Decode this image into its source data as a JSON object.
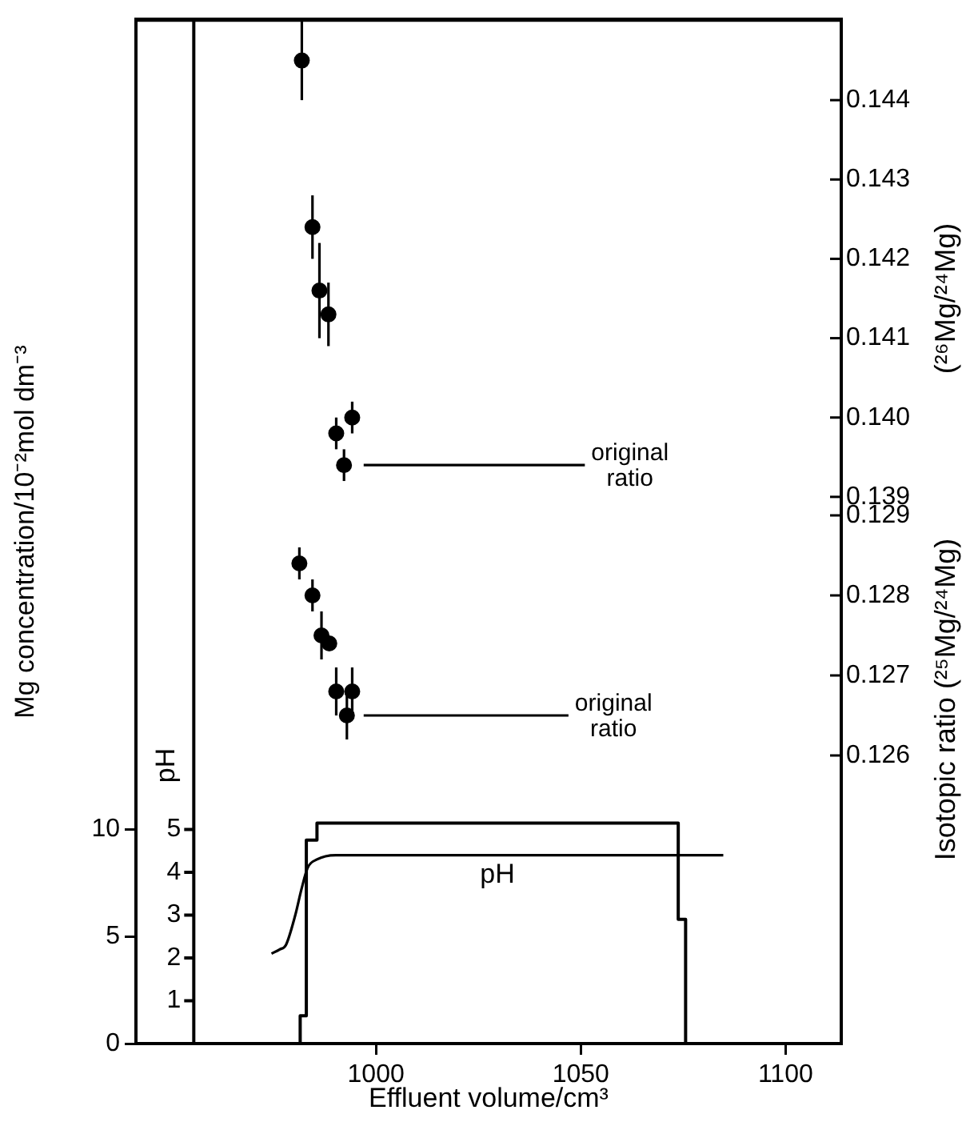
{
  "chart_data": [
    {
      "type": "line",
      "xlabel": "Effluent volume/cm³",
      "ylabel": "Mg concentration/10⁻²mol dm⁻³",
      "y2label": "pH",
      "xlim": [
        941.4,
        1113.6
      ],
      "xticks": [
        1000,
        1050,
        1100
      ],
      "ylim": [
        0,
        47.8
      ],
      "yticks": [
        0,
        5,
        10
      ],
      "y2lim": [
        0,
        23.9
      ],
      "y2ticks": [
        1,
        2,
        3,
        4,
        5
      ],
      "grid": false,
      "legend": false,
      "series": [
        {
          "type": "step",
          "color": "#000000",
          "x": [
            981.5,
            981.5,
            983.0,
            985.6,
            1073.8,
            1075.6,
            1078.0
          ],
          "values": [
            0,
            1.3,
            9.5,
            10.3,
            5.8,
            0,
            0
          ]
        },
        {
          "name": "pH",
          "axis": "y2",
          "color": "#000000",
          "x": [
            974.5,
            976.5,
            978.0,
            980.3,
            981.8,
            983.3,
            985.6,
            990.2,
            1084.8
          ],
          "values": [
            2.1,
            2.2,
            2.3,
            3.0,
            3.6,
            4.1,
            4.3,
            4.4,
            4.4
          ]
        }
      ]
    },
    {
      "type": "scatter",
      "y2label": "Isotopic ratio (²⁵Mg/²⁴Mg)",
      "y3label": "(²⁶Mg/²⁴Mg)",
      "xlim": [
        941.4,
        1113.6
      ],
      "y2lim": [
        0.1224,
        0.1352
      ],
      "y2ticks": [
        0.126,
        0.127,
        0.128,
        0.129
      ],
      "y3lim": [
        0.13211,
        0.14502
      ],
      "y3ticks": [
        0.139,
        {
          "value": 0.14,
          "label": "0.140"
        },
        0.141,
        0.142,
        0.143,
        0.144
      ],
      "tick_labels": "y",
      "grid": false,
      "legend": false,
      "marker": "circle",
      "series": [
        {
          "axis": "y3",
          "color": "#000000",
          "x": [
            981.9,
            984.5,
            986.2,
            988.4,
            990.3,
            994.2,
            992.2
          ],
          "values": [
            0.1445,
            0.1424,
            0.1416,
            0.1413,
            0.1398,
            0.14,
            0.1394
          ],
          "errors": [
            0.0005,
            0.0004,
            0.0006,
            0.0004,
            0.0002,
            0.0002,
            0.0002
          ]
        },
        {
          "type": "line",
          "name": "original ratio",
          "axis": "y3",
          "marker": "none",
          "color": "#000000",
          "x": [
            997,
            1051
          ],
          "values": [
            0.1394,
            0.1394
          ]
        },
        {
          "axis": "y2",
          "color": "#000000",
          "x": [
            981.3,
            984.5,
            986.7,
            988.6,
            990.3,
            994.2,
            992.9
          ],
          "values": [
            0.1284,
            0.128,
            0.1275,
            0.1274,
            0.1268,
            0.1268,
            0.1265
          ],
          "errors": [
            0.0002,
            0.0002,
            0.0003,
            null,
            0.0003,
            0.0003,
            0.0003
          ]
        },
        {
          "type": "line",
          "name": "original ratio",
          "axis": "y2",
          "marker": "none",
          "color": "#000000",
          "x": [
            997,
            1047
          ],
          "values": [
            0.1265,
            0.1265
          ]
        }
      ]
    }
  ]
}
